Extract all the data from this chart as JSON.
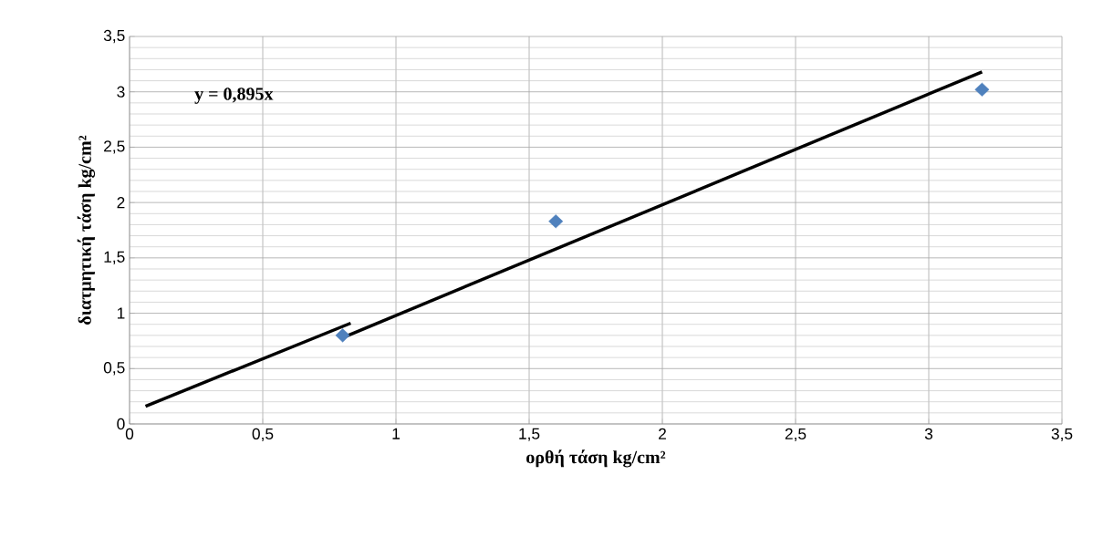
{
  "chart_data": {
    "type": "scatter",
    "xlabel": "ορθή τάση kg/cm²",
    "ylabel": "διατμητική τάση kg/cm²",
    "annotations": [
      "y = 0,895x"
    ],
    "xlim": [
      0,
      3.5
    ],
    "ylim": [
      0,
      3.5
    ],
    "xticks": [
      0,
      {
        "value": 0.5,
        "label": "0,5"
      },
      1,
      {
        "value": 1.5,
        "label": "1,5"
      },
      2,
      {
        "value": 2.5,
        "label": "2,5"
      },
      3,
      {
        "value": 3.5,
        "label": "3,5"
      }
    ],
    "yticks": [
      0,
      {
        "value": 0.5,
        "label": "0,5"
      },
      1,
      {
        "value": 1.5,
        "label": "1,5"
      },
      2,
      {
        "value": 2.5,
        "label": "2,5"
      },
      3,
      {
        "value": 3.5,
        "label": "3,5"
      }
    ],
    "grid": true,
    "series": [
      {
        "color": "#4f81bd",
        "marker": "diamond",
        "x": [
          0.8,
          1.6,
          3.2
        ],
        "values": [
          0.8,
          1.83,
          3.02
        ]
      },
      {
        "type": "line",
        "color": "#000000",
        "marker": "none",
        "x": [
          0.06,
          0.83
        ],
        "values": [
          0.16,
          0.91
        ]
      },
      {
        "type": "line",
        "color": "#000000",
        "marker": "none",
        "x": [
          0.8,
          3.2
        ],
        "values": [
          0.78,
          3.18
        ]
      }
    ]
  }
}
